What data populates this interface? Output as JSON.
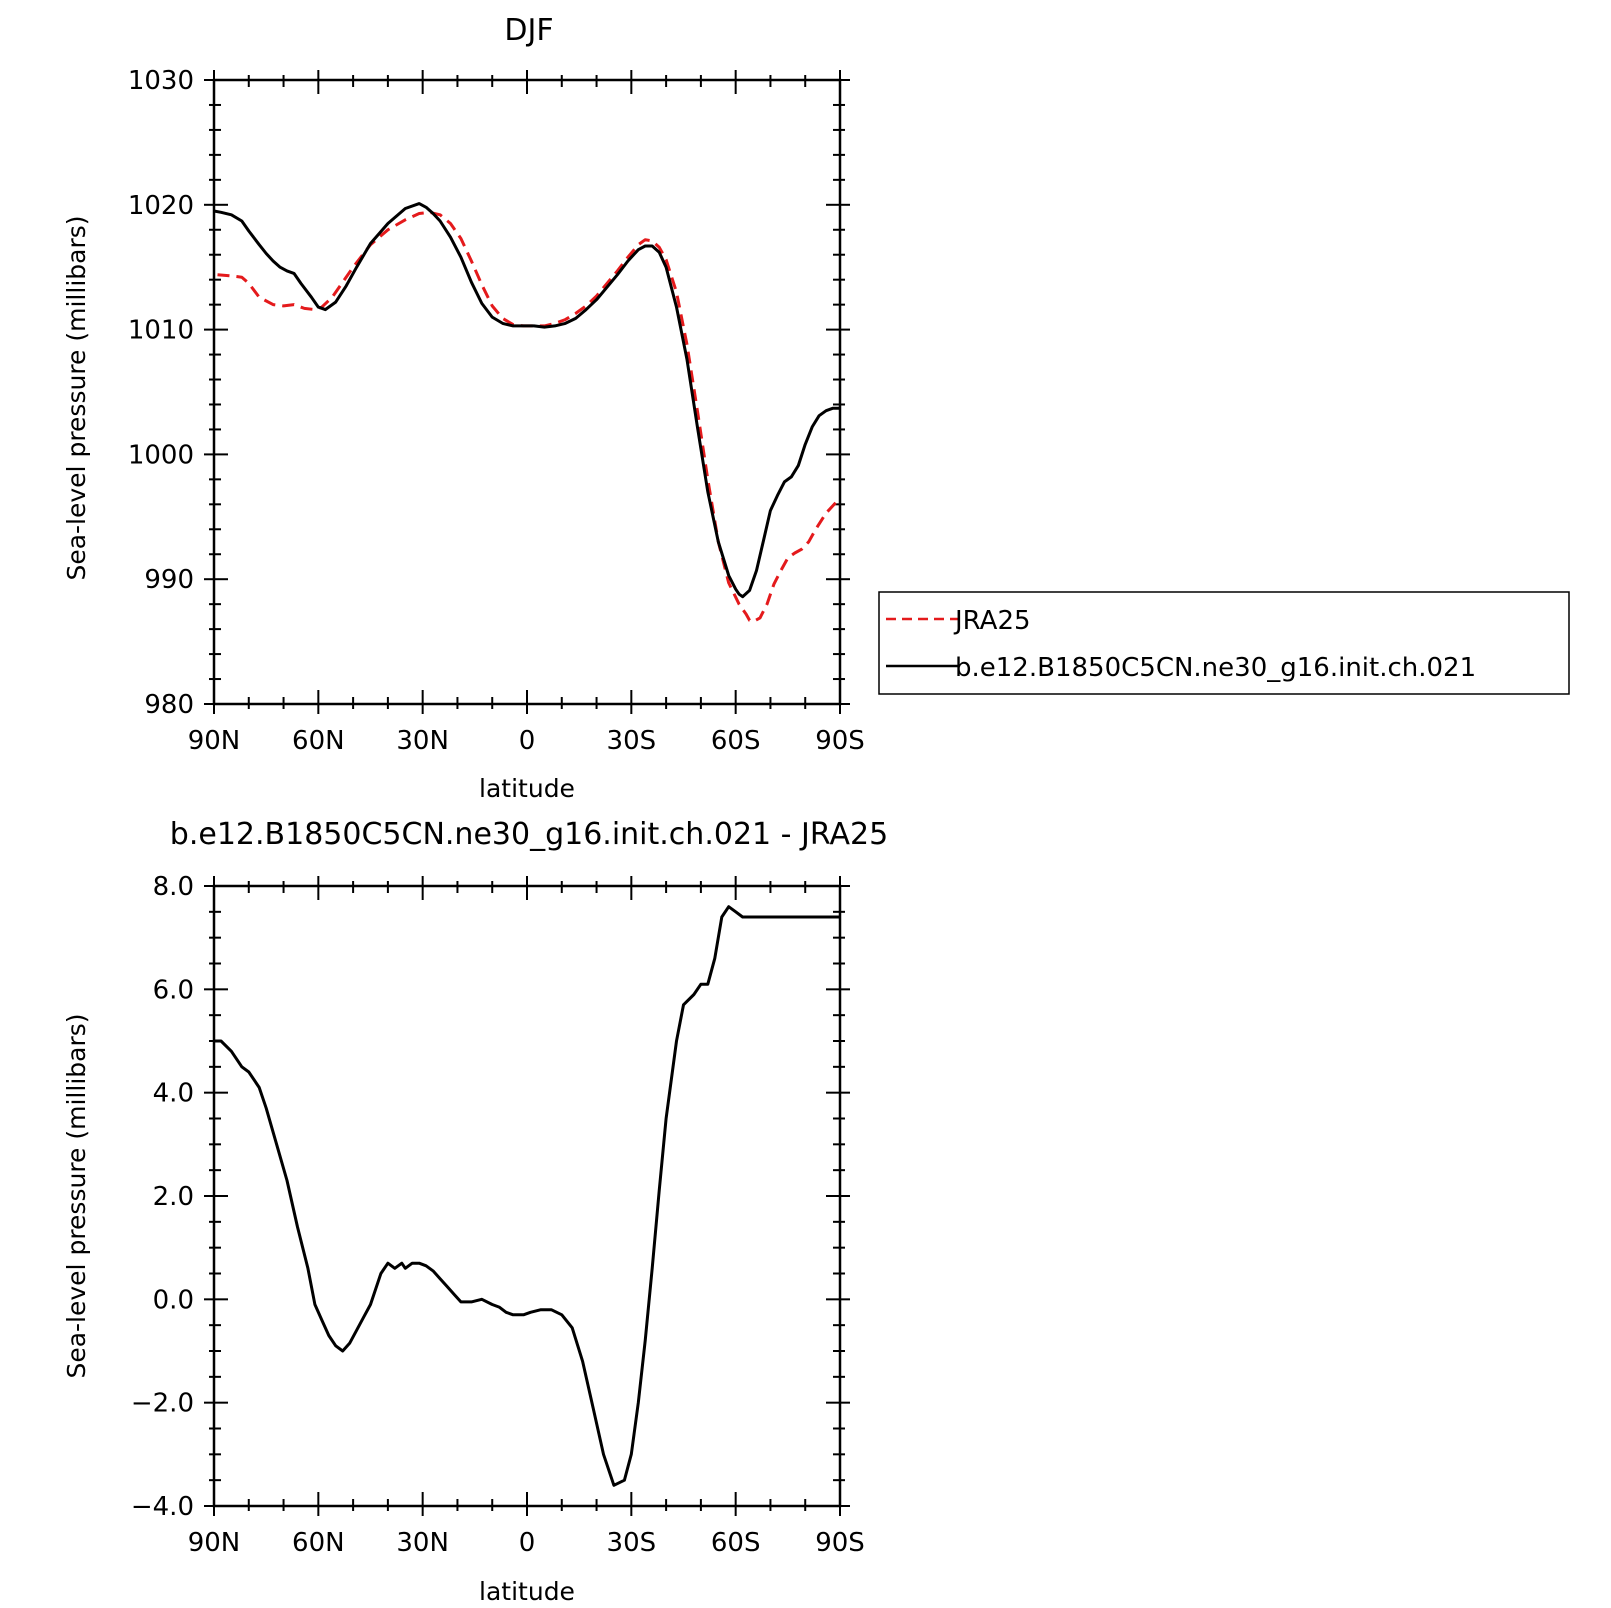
{
  "chart_data": [
    {
      "type": "line",
      "title": "DJF",
      "xlabel": "latitude",
      "ylabel": "Sea-level pressure (millibars)",
      "xlim": [
        90,
        -90
      ],
      "ylim": [
        980,
        1030
      ],
      "xticks": [
        {
          "value": 90,
          "label": "90N"
        },
        {
          "value": 60,
          "label": "60N"
        },
        {
          "value": 30,
          "label": "30N"
        },
        {
          "value": 0,
          "label": "0"
        },
        {
          "value": -30,
          "label": "30S"
        },
        {
          "value": -60,
          "label": "60S"
        },
        {
          "value": -90,
          "label": "90S"
        }
      ],
      "yticks": [
        {
          "value": 1030,
          "label": "1030"
        },
        {
          "value": 1020,
          "label": "1020"
        },
        {
          "value": 1010,
          "label": "1010"
        },
        {
          "value": 1000,
          "label": "1000"
        },
        {
          "value": 990,
          "label": "990"
        },
        {
          "value": 980,
          "label": "980"
        }
      ],
      "legend": {
        "position": "right",
        "entries": [
          "JRA25",
          "b.e12.B1850C5CN.ne30_g16.init.ch.021"
        ]
      },
      "series": [
        {
          "name": "JRA25",
          "color": "#e41a1c",
          "dash": "dashed",
          "x": [
            89,
            85,
            82,
            80,
            77,
            73,
            70,
            67,
            64,
            61,
            59,
            56,
            53,
            50,
            45,
            40,
            35,
            31,
            28,
            25,
            22,
            19,
            16,
            13,
            10,
            7,
            4,
            1,
            -2,
            -5,
            -8,
            -11,
            -14,
            -17,
            -20,
            -23,
            -26,
            -29,
            -32,
            -34,
            -36,
            -38,
            -40,
            -43,
            -46,
            -49,
            -52,
            -55,
            -58,
            -61,
            -63,
            -64,
            -65,
            -67,
            -69,
            -71,
            -73,
            -75,
            -77,
            -79,
            -81,
            -83,
            -86,
            -89
          ],
          "y": [
            1014.4,
            1014.3,
            1014.2,
            1013.7,
            1012.6,
            1012.0,
            1011.9,
            1012.0,
            1011.7,
            1011.6,
            1011.8,
            1012.6,
            1013.8,
            1015.0,
            1016.8,
            1018.0,
            1018.8,
            1019.3,
            1019.4,
            1019.2,
            1018.5,
            1017.3,
            1015.5,
            1013.6,
            1011.9,
            1010.9,
            1010.4,
            1010.3,
            1010.3,
            1010.3,
            1010.5,
            1010.8,
            1011.3,
            1011.9,
            1012.7,
            1013.7,
            1014.7,
            1015.8,
            1016.8,
            1017.2,
            1017.1,
            1016.6,
            1015.6,
            1013.0,
            1008.8,
            1003.5,
            998.0,
            993.0,
            989.7,
            988.0,
            987.2,
            986.7,
            986.6,
            986.9,
            988.0,
            989.6,
            990.7,
            991.7,
            992.1,
            992.4,
            993.0,
            994.0,
            995.3,
            996.2
          ]
        },
        {
          "name": "b.e12.B1850C5CN.ne30_g16.init.ch.021",
          "color": "#000000",
          "dash": "solid",
          "x": [
            90,
            88,
            85,
            82,
            80,
            77,
            75,
            73,
            71,
            69,
            67,
            65,
            62,
            60,
            58,
            55,
            52,
            49,
            45,
            40,
            35,
            31,
            29,
            27,
            25,
            22,
            19,
            16,
            13,
            10,
            7,
            4,
            1,
            -2,
            -5,
            -8,
            -11,
            -14,
            -17,
            -20,
            -23,
            -26,
            -29,
            -32,
            -34,
            -36,
            -38,
            -40,
            -43,
            -46,
            -49,
            -52,
            -55,
            -58,
            -60,
            -61,
            -62,
            -64,
            -66,
            -68,
            -70,
            -72,
            -74,
            -76,
            -78,
            -80,
            -82,
            -84,
            -86,
            -88,
            -90
          ],
          "y": [
            1019.5,
            1019.4,
            1019.2,
            1018.7,
            1017.9,
            1016.8,
            1016.1,
            1015.5,
            1015.0,
            1014.7,
            1014.5,
            1013.7,
            1012.6,
            1011.8,
            1011.6,
            1012.2,
            1013.5,
            1015.0,
            1016.9,
            1018.5,
            1019.7,
            1020.1,
            1019.8,
            1019.3,
            1018.7,
            1017.4,
            1015.8,
            1013.8,
            1012.1,
            1011.0,
            1010.5,
            1010.3,
            1010.3,
            1010.3,
            1010.2,
            1010.3,
            1010.5,
            1010.9,
            1011.6,
            1012.4,
            1013.4,
            1014.4,
            1015.5,
            1016.4,
            1016.7,
            1016.7,
            1016.2,
            1015.0,
            1011.8,
            1007.6,
            1002.2,
            997.0,
            993.0,
            990.3,
            989.2,
            988.8,
            988.6,
            989.1,
            990.7,
            993.1,
            995.5,
            996.7,
            997.8,
            998.2,
            999.1,
            1000.8,
            1002.2,
            1003.1,
            1003.5,
            1003.7,
            1003.7
          ]
        }
      ]
    },
    {
      "type": "line",
      "title": "b.e12.B1850C5CN.ne30_g16.init.ch.021 - JRA25",
      "xlabel": "latitude",
      "ylabel": "Sea-level pressure (millibars)",
      "xlim": [
        90,
        -90
      ],
      "ylim": [
        -4.0,
        8.0
      ],
      "xticks": [
        {
          "value": 90,
          "label": "90N"
        },
        {
          "value": 60,
          "label": "60N"
        },
        {
          "value": 30,
          "label": "30N"
        },
        {
          "value": 0,
          "label": "0"
        },
        {
          "value": -30,
          "label": "30S"
        },
        {
          "value": -60,
          "label": "60S"
        },
        {
          "value": -90,
          "label": "90S"
        }
      ],
      "yticks": [
        {
          "value": 8,
          "label": "8.0"
        },
        {
          "value": 6,
          "label": "6.0"
        },
        {
          "value": 4,
          "label": "4.0"
        },
        {
          "value": 2,
          "label": "2.0"
        },
        {
          "value": 0,
          "label": "0.0"
        },
        {
          "value": -2,
          "label": "−2.0"
        },
        {
          "value": -4,
          "label": "−4.0"
        }
      ],
      "series": [
        {
          "color": "#000000",
          "dash": "solid",
          "x": [
            90,
            88,
            85,
            82,
            80,
            77,
            75,
            72,
            69,
            66,
            63,
            61,
            59,
            57,
            55,
            53,
            51,
            49,
            47,
            45,
            42,
            40,
            38,
            36,
            35,
            33,
            31,
            29,
            27,
            25,
            23,
            21,
            19,
            16,
            13,
            10,
            8,
            6,
            4,
            1,
            -1,
            -4,
            -7,
            -10,
            -13,
            -16,
            -19,
            -22,
            -25,
            -28,
            -30,
            -32,
            -34,
            -36,
            -38,
            -40,
            -43,
            -45,
            -48,
            -50,
            -52,
            -54,
            -56,
            -58,
            -60,
            -62,
            -64,
            -66,
            -68,
            -70,
            -72,
            -75,
            -77,
            -79,
            -81,
            -83,
            -85,
            -86,
            -88,
            -90
          ],
          "y": [
            5.0,
            5.0,
            4.8,
            4.5,
            4.4,
            4.1,
            3.7,
            3.0,
            2.3,
            1.4,
            0.6,
            -0.1,
            -0.4,
            -0.7,
            -0.9,
            -1.0,
            -0.85,
            -0.6,
            -0.35,
            -0.1,
            0.5,
            0.7,
            0.6,
            0.7,
            0.6,
            0.7,
            0.7,
            0.65,
            0.55,
            0.4,
            0.25,
            0.1,
            -0.05,
            -0.05,
            0.0,
            -0.1,
            -0.15,
            -0.25,
            -0.3,
            -0.3,
            -0.25,
            -0.2,
            -0.2,
            -0.3,
            -0.55,
            -1.2,
            -2.1,
            -3.0,
            -3.6,
            -3.5,
            -3.0,
            -2.0,
            -0.8,
            0.6,
            2.1,
            3.5,
            5.0,
            5.7,
            5.9,
            6.1,
            6.1,
            6.6,
            7.4,
            7.6,
            7.5,
            7.4,
            7.4,
            7.4,
            7.4,
            7.4,
            7.4,
            7.4,
            7.4,
            7.4,
            7.4,
            7.4,
            7.4,
            7.4,
            7.4,
            7.4
          ]
        }
      ]
    }
  ]
}
